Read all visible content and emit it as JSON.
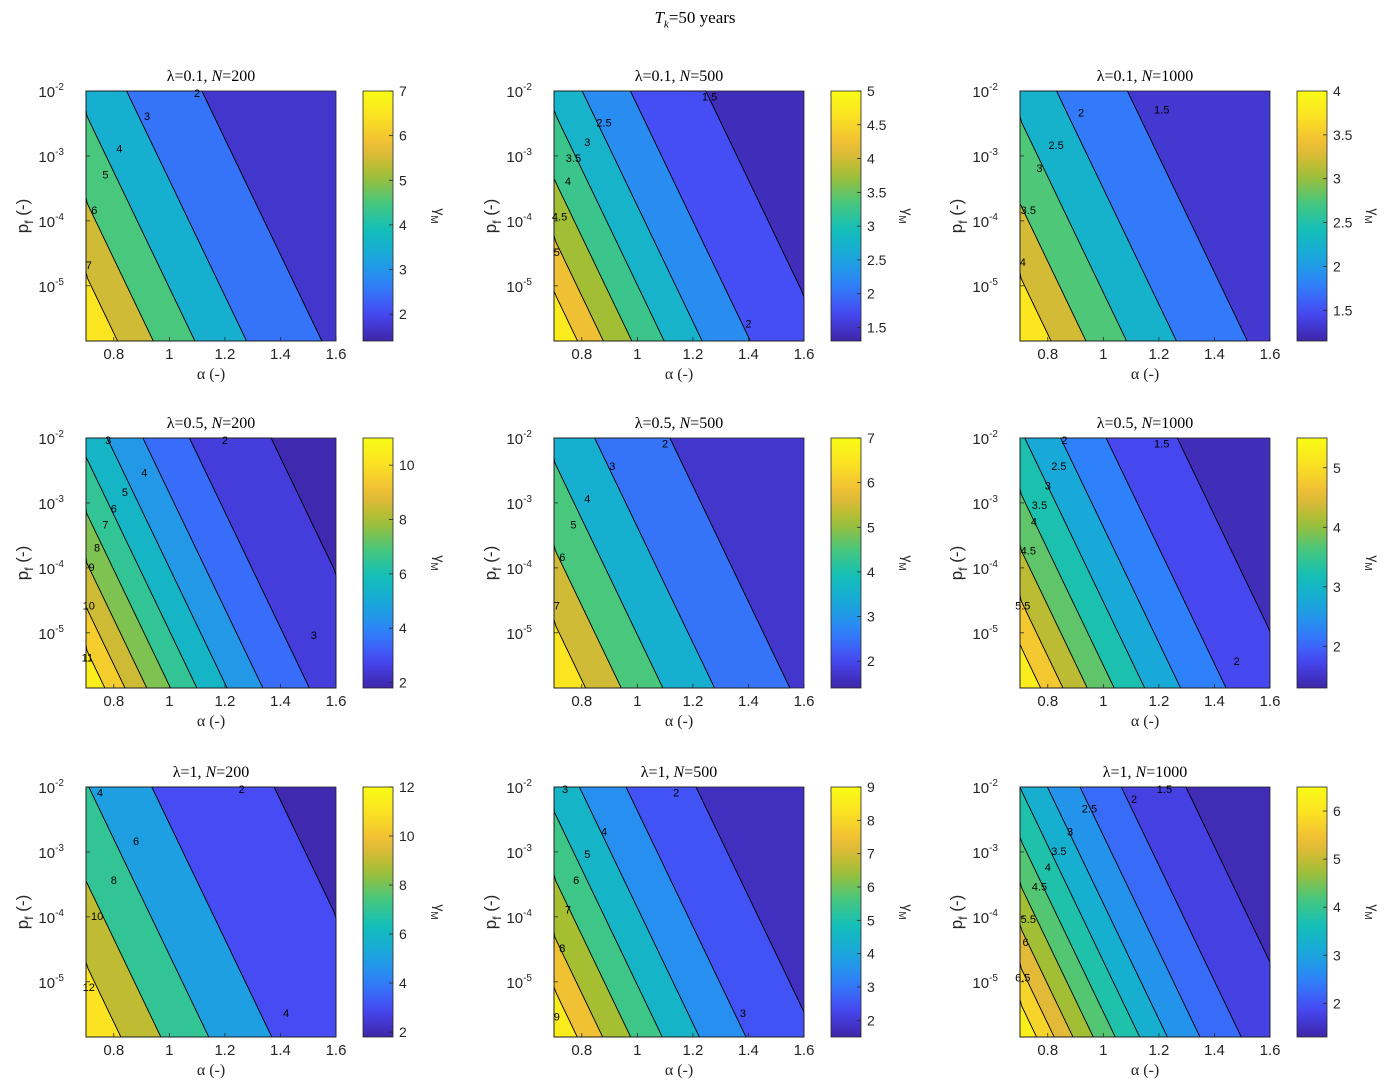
{
  "figure_title": "T_k=50 years",
  "title_parts": {
    "symbol": "T",
    "subscript": "k",
    "rest": "=50 years"
  },
  "colormap": [
    "#3e26a8",
    "#4748f3",
    "#2f80fb",
    "#1aa6dc",
    "#12bfb9",
    "#49c77c",
    "#a5be32",
    "#eeb938",
    "#fbe023",
    "#f9fb15"
  ],
  "chart_data": [
    {
      "type": "contour",
      "row": 0,
      "col": 0,
      "lambda": "0.1",
      "N": "200",
      "title": "λ=0.1, N=200",
      "xlabel": "α (-)",
      "ylabel": "p_f (-)",
      "colorbar_label": "γ_M",
      "xlim": [
        0.7,
        1.6
      ],
      "ylim_log10": [
        -5.85,
        -2
      ],
      "xticks": [
        "0.8",
        "1",
        "1.2",
        "1.4",
        "1.6"
      ],
      "xtick_values": [
        0.8,
        1,
        1.2,
        1.4,
        1.6
      ],
      "yticks": [
        "-5",
        "-4",
        "-3",
        "-2"
      ],
      "yscale": "log",
      "zlim": [
        1.4,
        7
      ],
      "cbar_ticks": [
        "2",
        "3",
        "4",
        "5",
        "6",
        "7"
      ],
      "cbar_tick_values": [
        2,
        3,
        4,
        5,
        6,
        7
      ],
      "contour_levels": [
        2,
        3,
        4,
        5,
        6,
        7
      ],
      "contour_labels": [
        {
          "text": "2",
          "x": 1.1,
          "y": -2.05
        },
        {
          "text": "3",
          "x": 0.92,
          "y": -2.4
        },
        {
          "text": "4",
          "x": 0.82,
          "y": -2.9
        },
        {
          "text": "5",
          "x": 0.77,
          "y": -3.3
        },
        {
          "text": "6",
          "x": 0.73,
          "y": -3.85
        },
        {
          "text": "7",
          "x": 0.71,
          "y": -4.7
        }
      ]
    },
    {
      "type": "contour",
      "row": 0,
      "col": 1,
      "lambda": "0.1",
      "N": "500",
      "title": "λ=0.1, N=500",
      "xlabel": "α (-)",
      "ylabel": "p_f (-)",
      "colorbar_label": "γ_M",
      "xlim": [
        0.7,
        1.6
      ],
      "ylim_log10": [
        -5.85,
        -2
      ],
      "xticks": [
        "0.8",
        "1",
        "1.2",
        "1.4",
        "1.6"
      ],
      "xtick_values": [
        0.8,
        1,
        1.2,
        1.4,
        1.6
      ],
      "yticks": [
        "-5",
        "-4",
        "-3",
        "-2"
      ],
      "yscale": "log",
      "zlim": [
        1.3,
        5
      ],
      "cbar_ticks": [
        "1.5",
        "2",
        "2.5",
        "3",
        "3.5",
        "4",
        "4.5",
        "5"
      ],
      "cbar_tick_values": [
        1.5,
        2,
        2.5,
        3,
        3.5,
        4,
        4.5,
        5
      ],
      "contour_levels": [
        1.5,
        2,
        2.5,
        3,
        3.5,
        4,
        4.5,
        5
      ],
      "contour_labels": [
        {
          "text": "1.5",
          "x": 1.26,
          "y": -2.1
        },
        {
          "text": "2.5",
          "x": 0.88,
          "y": -2.5
        },
        {
          "text": "3",
          "x": 0.82,
          "y": -2.8
        },
        {
          "text": "3.5",
          "x": 0.77,
          "y": -3.05
        },
        {
          "text": "4",
          "x": 0.75,
          "y": -3.4
        },
        {
          "text": "4.5",
          "x": 0.72,
          "y": -3.95
        },
        {
          "text": "5",
          "x": 0.71,
          "y": -4.5
        },
        {
          "text": "2",
          "x": 1.4,
          "y": -5.6
        }
      ]
    },
    {
      "type": "contour",
      "row": 0,
      "col": 2,
      "lambda": "0.1",
      "N": "1000",
      "title": "λ=0.1, N=1000",
      "xlabel": "α (-)",
      "ylabel": "p_f (-)",
      "colorbar_label": "γ_M",
      "xlim": [
        0.7,
        1.6
      ],
      "ylim_log10": [
        -5.85,
        -2
      ],
      "xticks": [
        "0.8",
        "1",
        "1.2",
        "1.4",
        "1.6"
      ],
      "xtick_values": [
        0.8,
        1,
        1.2,
        1.4,
        1.6
      ],
      "yticks": [
        "-5",
        "-4",
        "-3",
        "-2"
      ],
      "yscale": "log",
      "zlim": [
        1.15,
        4
      ],
      "cbar_ticks": [
        "1.5",
        "2",
        "2.5",
        "3",
        "3.5",
        "4"
      ],
      "cbar_tick_values": [
        1.5,
        2,
        2.5,
        3,
        3.5,
        4
      ],
      "contour_levels": [
        1.5,
        2,
        2.5,
        3,
        3.5,
        4
      ],
      "contour_labels": [
        {
          "text": "1.5",
          "x": 1.21,
          "y": -2.3
        },
        {
          "text": "2",
          "x": 0.92,
          "y": -2.35
        },
        {
          "text": "2.5",
          "x": 0.83,
          "y": -2.85
        },
        {
          "text": "3",
          "x": 0.77,
          "y": -3.2
        },
        {
          "text": "3.5",
          "x": 0.73,
          "y": -3.85
        },
        {
          "text": "4",
          "x": 0.71,
          "y": -4.65
        }
      ]
    },
    {
      "type": "contour",
      "row": 1,
      "col": 0,
      "lambda": "0.5",
      "N": "200",
      "title": "λ=0.5, N=200",
      "xlabel": "α (-)",
      "ylabel": "p_f (-)",
      "colorbar_label": "γ_M",
      "xlim": [
        0.7,
        1.6
      ],
      "ylim_log10": [
        -5.85,
        -2
      ],
      "xticks": [
        "0.8",
        "1",
        "1.2",
        "1.4",
        "1.6"
      ],
      "xtick_values": [
        0.8,
        1,
        1.2,
        1.4,
        1.6
      ],
      "yticks": [
        "-5",
        "-4",
        "-3",
        "-2"
      ],
      "yscale": "log",
      "zlim": [
        1.8,
        11
      ],
      "cbar_ticks": [
        "2",
        "4",
        "6",
        "8",
        "10"
      ],
      "cbar_tick_values": [
        2,
        4,
        6,
        8,
        10
      ],
      "contour_levels": [
        2,
        3,
        4,
        5,
        6,
        7,
        8,
        9,
        10,
        11
      ],
      "contour_labels": [
        {
          "text": "3",
          "x": 0.78,
          "y": -2.05
        },
        {
          "text": "2",
          "x": 1.2,
          "y": -2.05
        },
        {
          "text": "4",
          "x": 0.91,
          "y": -2.55
        },
        {
          "text": "5",
          "x": 0.84,
          "y": -2.85
        },
        {
          "text": "6",
          "x": 0.8,
          "y": -3.1
        },
        {
          "text": "7",
          "x": 0.77,
          "y": -3.35
        },
        {
          "text": "8",
          "x": 0.74,
          "y": -3.7
        },
        {
          "text": "9",
          "x": 0.72,
          "y": -4.0
        },
        {
          "text": "10",
          "x": 0.71,
          "y": -4.6
        },
        {
          "text": "11",
          "x": 0.705,
          "y": -5.4
        },
        {
          "text": "3",
          "x": 1.52,
          "y": -5.05
        }
      ]
    },
    {
      "type": "contour",
      "row": 1,
      "col": 1,
      "lambda": "0.5",
      "N": "500",
      "title": "λ=0.5, N=500",
      "xlabel": "α (-)",
      "ylabel": "p_f (-)",
      "colorbar_label": "γ_M",
      "xlim": [
        0.7,
        1.6
      ],
      "ylim_log10": [
        -5.85,
        -2
      ],
      "xticks": [
        "0.8",
        "1",
        "1.2",
        "1.4",
        "1.6"
      ],
      "xtick_values": [
        0.8,
        1,
        1.2,
        1.4,
        1.6
      ],
      "yticks": [
        "-5",
        "-4",
        "-3",
        "-2"
      ],
      "yscale": "log",
      "zlim": [
        1.4,
        7
      ],
      "cbar_ticks": [
        "2",
        "3",
        "4",
        "5",
        "6",
        "7"
      ],
      "cbar_tick_values": [
        2,
        3,
        4,
        5,
        6,
        7
      ],
      "contour_levels": [
        2,
        3,
        4,
        5,
        6,
        7
      ],
      "contour_labels": [
        {
          "text": "2",
          "x": 1.1,
          "y": -2.1
        },
        {
          "text": "3",
          "x": 0.91,
          "y": -2.45
        },
        {
          "text": "4",
          "x": 0.82,
          "y": -2.95
        },
        {
          "text": "5",
          "x": 0.77,
          "y": -3.35
        },
        {
          "text": "6",
          "x": 0.73,
          "y": -3.85
        },
        {
          "text": "7",
          "x": 0.71,
          "y": -4.6
        }
      ]
    },
    {
      "type": "contour",
      "row": 1,
      "col": 2,
      "lambda": "0.5",
      "N": "1000",
      "title": "λ=0.5, N=1000",
      "xlabel": "α (-)",
      "ylabel": "p_f (-)",
      "colorbar_label": "γ_M",
      "xlim": [
        0.7,
        1.6
      ],
      "ylim_log10": [
        -5.85,
        -2
      ],
      "xticks": [
        "0.8",
        "1",
        "1.2",
        "1.4",
        "1.6"
      ],
      "xtick_values": [
        0.8,
        1,
        1.2,
        1.4,
        1.6
      ],
      "yticks": [
        "-5",
        "-4",
        "-3",
        "-2"
      ],
      "yscale": "log",
      "zlim": [
        1.3,
        5.5
      ],
      "cbar_ticks": [
        "2",
        "3",
        "4",
        "5"
      ],
      "cbar_tick_values": [
        2,
        3,
        4,
        5
      ],
      "contour_levels": [
        1.5,
        2,
        2.5,
        3,
        3.5,
        4,
        4.5,
        5,
        5.5
      ],
      "contour_labels": [
        {
          "text": "2",
          "x": 0.86,
          "y": -2.05
        },
        {
          "text": "1.5",
          "x": 1.21,
          "y": -2.1
        },
        {
          "text": "2.5",
          "x": 0.84,
          "y": -2.45
        },
        {
          "text": "3",
          "x": 0.8,
          "y": -2.75
        },
        {
          "text": "3.5",
          "x": 0.77,
          "y": -3.05
        },
        {
          "text": "4",
          "x": 0.75,
          "y": -3.3
        },
        {
          "text": "4.5",
          "x": 0.73,
          "y": -3.75
        },
        {
          "text": "5.5",
          "x": 0.71,
          "y": -4.6
        },
        {
          "text": "2",
          "x": 1.48,
          "y": -5.45
        }
      ]
    },
    {
      "type": "contour",
      "row": 2,
      "col": 0,
      "lambda": "1",
      "N": "200",
      "title": "λ=1, N=200",
      "xlabel": "α (-)",
      "ylabel": "p_f (-)",
      "colorbar_label": "γ_M",
      "xlim": [
        0.7,
        1.6
      ],
      "ylim_log10": [
        -5.85,
        -2
      ],
      "xticks": [
        "0.8",
        "1",
        "1.2",
        "1.4",
        "1.6"
      ],
      "xtick_values": [
        0.8,
        1,
        1.2,
        1.4,
        1.6
      ],
      "yticks": [
        "-5",
        "-4",
        "-3",
        "-2"
      ],
      "yscale": "log",
      "zlim": [
        1.8,
        12
      ],
      "cbar_ticks": [
        "2",
        "4",
        "6",
        "8",
        "10",
        "12"
      ],
      "cbar_tick_values": [
        2,
        4,
        6,
        8,
        10,
        12
      ],
      "contour_levels": [
        2,
        4,
        6,
        8,
        10,
        12
      ],
      "contour_labels": [
        {
          "text": "4",
          "x": 0.75,
          "y": -2.1
        },
        {
          "text": "2",
          "x": 1.26,
          "y": -2.05
        },
        {
          "text": "6",
          "x": 0.88,
          "y": -2.85
        },
        {
          "text": "8",
          "x": 0.8,
          "y": -3.45
        },
        {
          "text": "10",
          "x": 0.74,
          "y": -4.0
        },
        {
          "text": "12",
          "x": 0.71,
          "y": -5.1
        },
        {
          "text": "4",
          "x": 1.42,
          "y": -5.5
        }
      ]
    },
    {
      "type": "contour",
      "row": 2,
      "col": 1,
      "lambda": "1",
      "N": "500",
      "title": "λ=1, N=500",
      "xlabel": "α (-)",
      "ylabel": "p_f (-)",
      "colorbar_label": "γ_M",
      "xlim": [
        0.7,
        1.6
      ],
      "ylim_log10": [
        -5.85,
        -2
      ],
      "xticks": [
        "0.8",
        "1",
        "1.2",
        "1.4",
        "1.6"
      ],
      "xtick_values": [
        0.8,
        1,
        1.2,
        1.4,
        1.6
      ],
      "yticks": [
        "-5",
        "-4",
        "-3",
        "-2"
      ],
      "yscale": "log",
      "zlim": [
        1.5,
        9
      ],
      "cbar_ticks": [
        "2",
        "3",
        "4",
        "5",
        "6",
        "7",
        "8",
        "9"
      ],
      "cbar_tick_values": [
        2,
        3,
        4,
        5,
        6,
        7,
        8,
        9
      ],
      "contour_levels": [
        2,
        3,
        4,
        5,
        6,
        7,
        8,
        9
      ],
      "contour_labels": [
        {
          "text": "3",
          "x": 0.74,
          "y": -2.05
        },
        {
          "text": "2",
          "x": 1.14,
          "y": -2.1
        },
        {
          "text": "4",
          "x": 0.88,
          "y": -2.7
        },
        {
          "text": "5",
          "x": 0.82,
          "y": -3.05
        },
        {
          "text": "6",
          "x": 0.78,
          "y": -3.45
        },
        {
          "text": "7",
          "x": 0.75,
          "y": -3.9
        },
        {
          "text": "8",
          "x": 0.73,
          "y": -4.5
        },
        {
          "text": "9",
          "x": 0.71,
          "y": -5.55
        },
        {
          "text": "3",
          "x": 1.38,
          "y": -5.5
        }
      ]
    },
    {
      "type": "contour",
      "row": 2,
      "col": 2,
      "lambda": "1",
      "N": "1000",
      "title": "λ=1, N=1000",
      "xlabel": "α (-)",
      "ylabel": "p_f (-)",
      "colorbar_label": "γ_M",
      "xlim": [
        0.7,
        1.6
      ],
      "ylim_log10": [
        -5.85,
        -2
      ],
      "xticks": [
        "0.8",
        "1",
        "1.2",
        "1.4",
        "1.6"
      ],
      "xtick_values": [
        0.8,
        1,
        1.2,
        1.4,
        1.6
      ],
      "yticks": [
        "-5",
        "-4",
        "-3",
        "-2"
      ],
      "yscale": "log",
      "zlim": [
        1.3,
        6.5
      ],
      "cbar_ticks": [
        "2",
        "3",
        "4",
        "5",
        "6"
      ],
      "cbar_tick_values": [
        2,
        3,
        4,
        5,
        6
      ],
      "contour_levels": [
        1.5,
        2,
        2.5,
        3,
        3.5,
        4,
        4.5,
        5,
        5.5,
        6,
        6.5
      ],
      "contour_labels": [
        {
          "text": "1.5",
          "x": 1.22,
          "y": -2.05
        },
        {
          "text": "2",
          "x": 1.11,
          "y": -2.2
        },
        {
          "text": "2.5",
          "x": 0.95,
          "y": -2.35
        },
        {
          "text": "3",
          "x": 0.88,
          "y": -2.7
        },
        {
          "text": "3.5",
          "x": 0.84,
          "y": -3.0
        },
        {
          "text": "4",
          "x": 0.8,
          "y": -3.25
        },
        {
          "text": "4.5",
          "x": 0.77,
          "y": -3.55
        },
        {
          "text": "5.5",
          "x": 0.73,
          "y": -4.05
        },
        {
          "text": "6",
          "x": 0.72,
          "y": -4.4
        },
        {
          "text": "6.5",
          "x": 0.71,
          "y": -4.95
        }
      ]
    }
  ]
}
